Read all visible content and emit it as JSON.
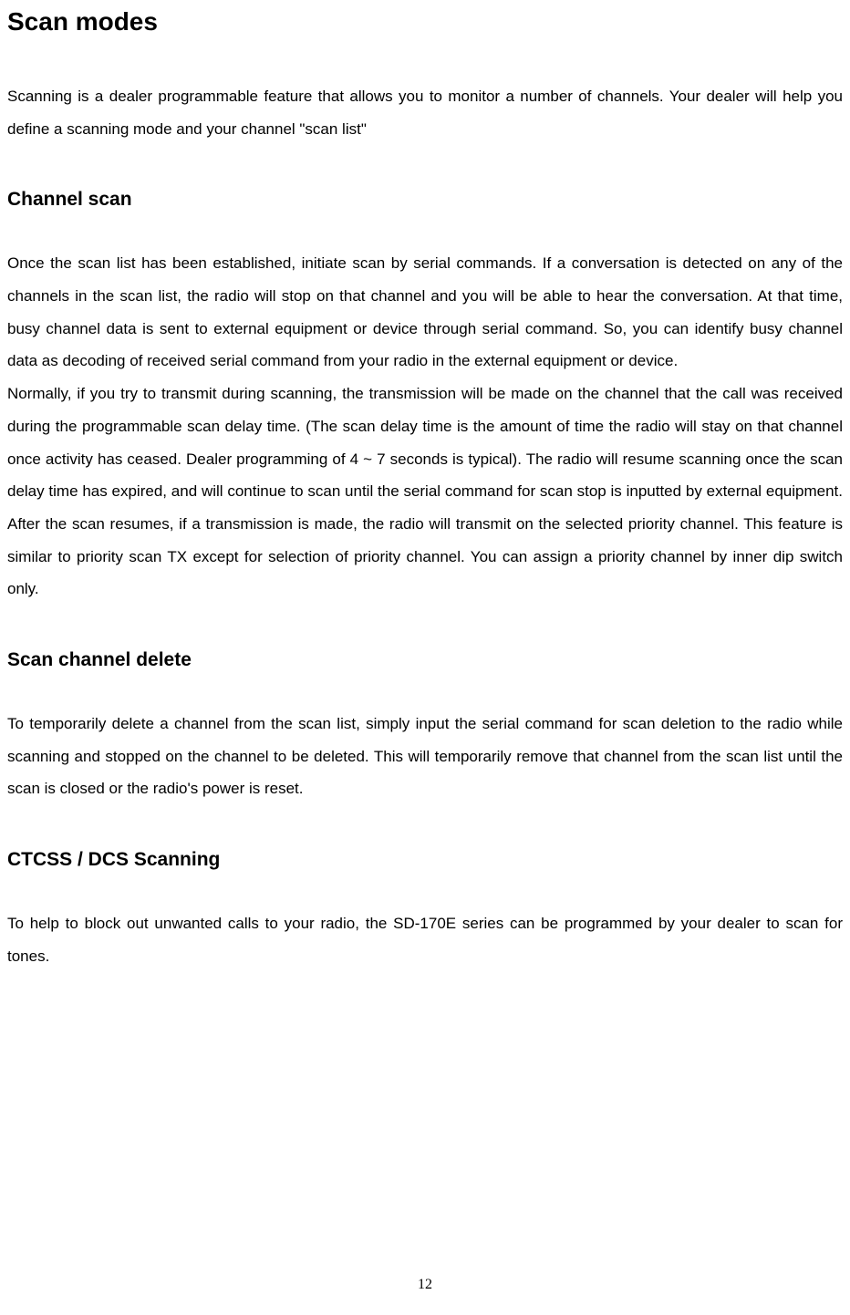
{
  "title": "Scan modes",
  "intro": "Scanning is a dealer programmable feature that allows you to monitor a number of channels. Your dealer will help you define a scanning mode and your channel \"scan list\"",
  "sections": [
    {
      "heading": "Channel scan",
      "paragraphs": [
        "Once the scan list has been established, initiate scan by serial commands. If a conversation is detected on any of the channels in the scan list, the radio will stop on that channel and you will be able to hear the conversation. At that time, busy channel data is sent to external equipment or device through serial command. So, you can identify busy channel data as decoding of received serial command from your radio in the external equipment or device.",
        "Normally, if you try to transmit during scanning, the transmission will be made on the channel that the call was received during the programmable scan delay time. (The scan delay time is the amount of time the radio will stay on that channel once activity has ceased. Dealer programming of 4 ~ 7 seconds is typical). The radio will resume scanning once the scan delay time has expired, and will continue to scan until the serial command for scan stop is inputted by external equipment. After the scan resumes, if a transmission is made, the radio will transmit on the selected priority channel. This feature is similar to priority scan TX except for selection of priority channel. You can assign a priority channel by inner dip switch only."
      ]
    },
    {
      "heading": "Scan channel delete",
      "paragraphs": [
        "To temporarily delete a channel from the scan list, simply input the serial command for scan deletion to the radio while scanning and stopped on the channel to be deleted. This will temporarily remove that channel from the scan list until the scan is closed or the radio's power is reset."
      ]
    },
    {
      "heading": "CTCSS / DCS Scanning",
      "paragraphs": [
        "To help to block out unwanted calls to your radio, the SD-170E series can be programmed by your dealer to scan for tones."
      ]
    }
  ],
  "page_number": "12",
  "styling": {
    "background_color": "#ffffff",
    "text_color": "#000000",
    "title_fontsize": 28,
    "heading_fontsize": 21,
    "body_fontsize": 17,
    "line_height": 2.1,
    "font_family": "Arial"
  }
}
